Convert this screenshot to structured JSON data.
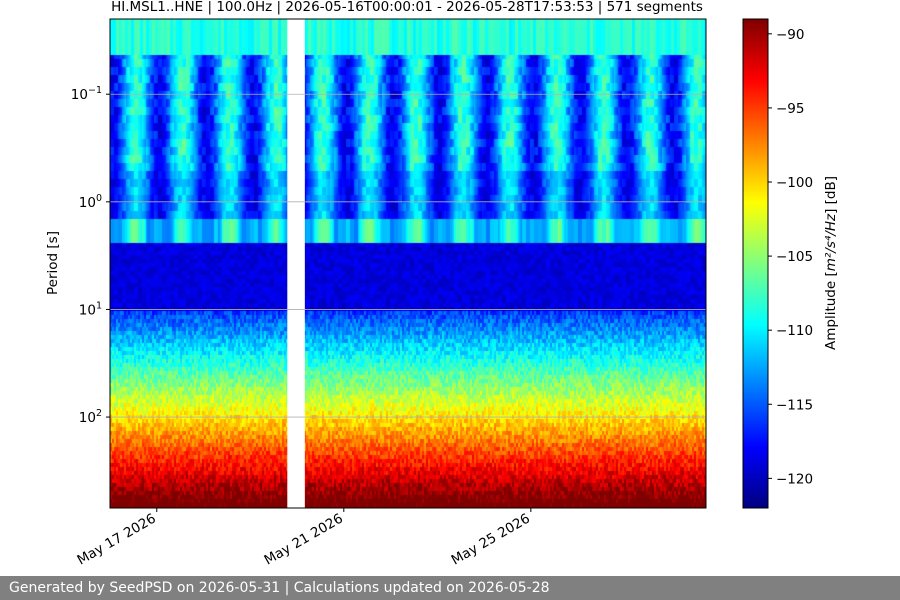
{
  "chart_data": {
    "type": "heatmap",
    "title": "HI.MSL1..HNE | 100.0Hz | 2026-05-16T00:00:01 - 2026-05-28T17:53:53 | 571 segments",
    "ylabel": "Period [s]",
    "y_scale": "log",
    "ylim": [
      0.02,
      700
    ],
    "y_ticks": [
      {
        "value": 0.1,
        "base": "10",
        "exp": "−1"
      },
      {
        "value": 1,
        "base": "10",
        "exp": "0"
      },
      {
        "value": 10,
        "base": "10",
        "exp": "1"
      },
      {
        "value": 100,
        "base": "10",
        "exp": "2"
      }
    ],
    "x_range": [
      "2026-05-16T00:00:01",
      "2026-05-28T17:53:53"
    ],
    "x_ticks": [
      {
        "date": "2026-05-17",
        "label": "May 17 2026"
      },
      {
        "date": "2026-05-21",
        "label": "May 21 2026"
      },
      {
        "date": "2026-05-25",
        "label": "May 25 2026"
      }
    ],
    "colorbar": {
      "label_prefix": "Amplitude [",
      "label_math": "m²/s⁴/Hz",
      "label_suffix": "] [dB]",
      "range": [
        -122,
        -89
      ],
      "ticks": [
        -90,
        -95,
        -100,
        -105,
        -110,
        -115,
        -120
      ],
      "colormap": "jet"
    },
    "colormap_colors": [
      "#00007f",
      "#0000ff",
      "#007fff",
      "#00ffff",
      "#7fff7f",
      "#ffff00",
      "#ff7f00",
      "#ff0000",
      "#7f0000"
    ],
    "data_gaps": [
      [
        "2026-05-19T19:00",
        "2026-05-20T04:00"
      ]
    ],
    "grid": true,
    "segments": 571
  },
  "footer": {
    "text": "Generated by SeedPSD on 2026-05-31 | Calculations updated on 2026-05-28"
  }
}
